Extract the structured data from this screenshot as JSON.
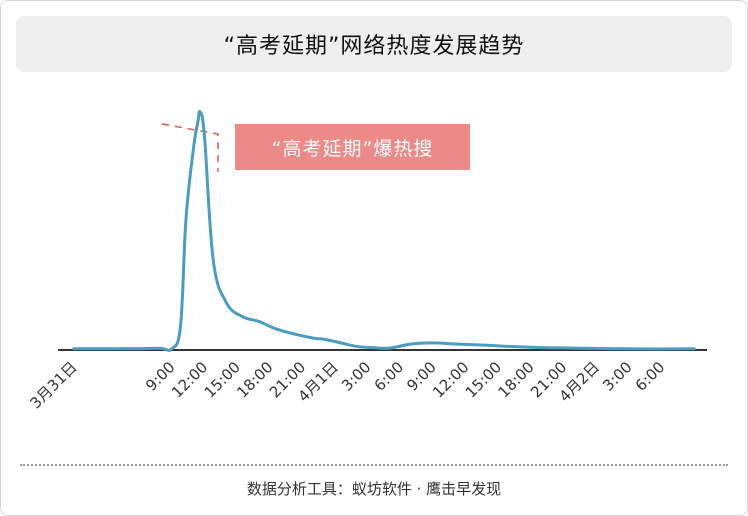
{
  "title": "“高考延期”网络热度发展趋势",
  "annotation": "“高考延期”爆热搜",
  "source": "数据分析工具：蚁坊软件 · 鹰击早发现",
  "colors": {
    "line": "#4a9cc0",
    "annotation_box": "#ec8a88",
    "annotation_leader": "#e0555a",
    "axis": "#333333",
    "title_bg": "#eeeeee"
  },
  "chart_data": {
    "type": "line",
    "title": "“高考延期”网络热度发展趋势",
    "xlabel": "",
    "ylabel": "",
    "x_ticks": [
      "3月31日",
      "9:00",
      "12:00",
      "15:00",
      "18:00",
      "21:00",
      "4月1日",
      "3:00",
      "6:00",
      "9:00",
      "12:00",
      "15:00",
      "18:00",
      "21:00",
      "4月2日",
      "3:00",
      "6:00"
    ],
    "x_ticks_hours": [
      0,
      9,
      12,
      15,
      18,
      21,
      24,
      27,
      30,
      33,
      36,
      39,
      42,
      45,
      48,
      51,
      54
    ],
    "x_range_hours": [
      -1,
      58
    ],
    "ylim": [
      0,
      100
    ],
    "y_axis_visible": false,
    "grid": false,
    "series": [
      {
        "x_hours": [
          0,
          6,
          8,
          9,
          9.8,
          10.3,
          11,
          11.4,
          11.6,
          12,
          12.8,
          14,
          15.5,
          17,
          18.5,
          20,
          22,
          23,
          24.5,
          26,
          27.5,
          29,
          31,
          33,
          35,
          38,
          40,
          43,
          46,
          50,
          54,
          57
        ],
        "values": [
          0.5,
          0.6,
          0.7,
          0.5,
          10,
          55,
          85,
          96,
          100,
          90,
          38,
          20,
          14,
          12,
          9,
          7,
          5,
          4.5,
          3,
          1.5,
          1,
          0.8,
          2.5,
          3,
          2.5,
          2,
          1.5,
          1,
          0.8,
          0.5,
          0.4,
          0.5
        ]
      }
    ]
  }
}
